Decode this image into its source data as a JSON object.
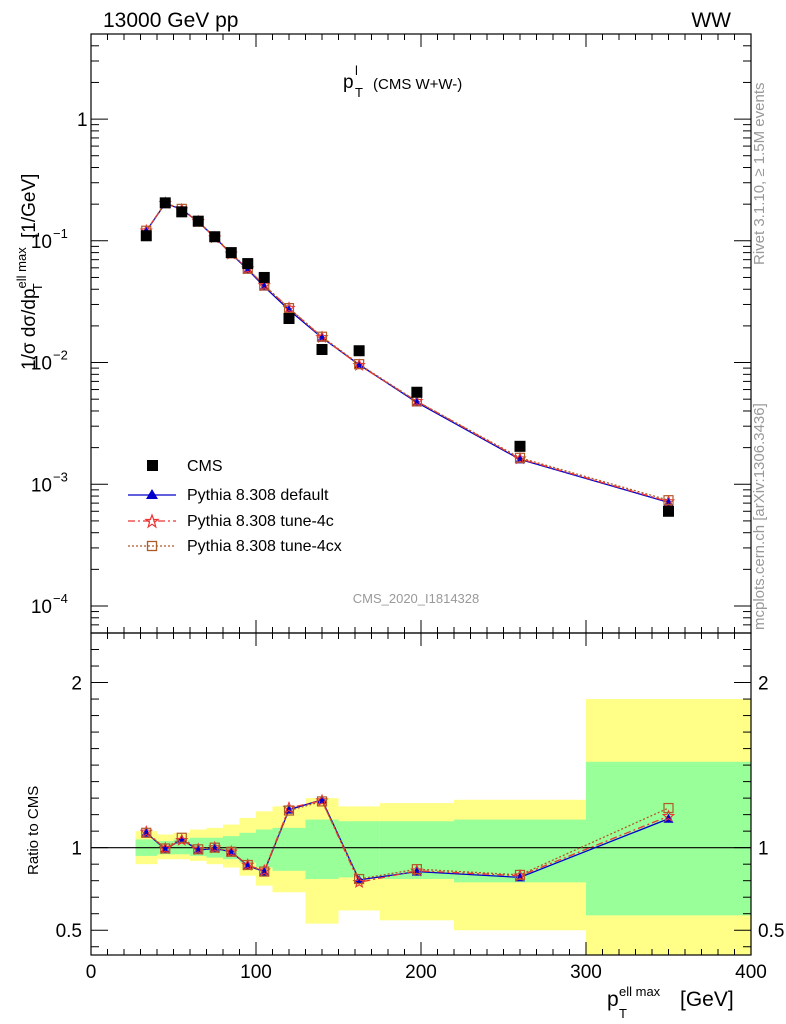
{
  "header": {
    "left": "13000 GeV pp",
    "right": "WW"
  },
  "plot_title": {
    "main": "p",
    "sup": "l",
    "sub": "T",
    "suffix": "(CMS W+W-)"
  },
  "side_text": {
    "rivet": "Rivet 3.1.10, ≥ 1.5M events",
    "mcplots": "mcplots.cern.ch [arXiv:1306.3436]"
  },
  "analysis_tag": "CMS_2020_I1814328",
  "colors": {
    "data": "#000000",
    "default": "#0000cc",
    "tune4c": "#ee3333",
    "tune4cx": "#b05a28",
    "band_green": "#99ff99",
    "band_yellow": "#ffff88"
  },
  "chart_data": [
    {
      "type": "scatter",
      "name": "main",
      "ylabel": "1/σ dσ/dp_T^{ell max} [1/GeV]",
      "yscale": "log",
      "ylim": [
        6e-05,
        5
      ],
      "xlim": [
        0,
        400
      ],
      "yticks": [
        {
          "v": 0.0001,
          "m": "10",
          "e": "−4"
        },
        {
          "v": 0.001,
          "m": "10",
          "e": "−3"
        },
        {
          "v": 0.01,
          "m": "10",
          "e": "−2"
        },
        {
          "v": 0.1,
          "m": "10",
          "e": "−1"
        },
        {
          "v": 1,
          "m": "1",
          "e": ""
        }
      ],
      "x": [
        33.5,
        45,
        55,
        65,
        75,
        85,
        95,
        105,
        120,
        140,
        162.5,
        197.5,
        260,
        350
      ],
      "series": [
        {
          "name": "CMS",
          "values": [
            0.11,
            0.205,
            0.173,
            0.145,
            0.108,
            0.08,
            0.065,
            0.05,
            0.023,
            0.0128,
            0.0125,
            0.0057,
            0.00205,
            0.0006
          ]
        },
        {
          "name": "Pythia 8.308 default",
          "values": [
            0.12,
            0.203,
            0.181,
            0.143,
            0.107,
            0.078,
            0.058,
            0.042,
            0.027,
            0.016,
            0.0096,
            0.0047,
            0.0016,
            0.00071
          ]
        },
        {
          "name": "Pythia 8.308 tune-4c",
          "values": [
            0.121,
            0.204,
            0.18,
            0.144,
            0.106,
            0.078,
            0.059,
            0.043,
            0.028,
            0.0161,
            0.0095,
            0.0048,
            0.00162,
            0.00072
          ]
        },
        {
          "name": "Pythia 8.308 tune-4cx",
          "values": [
            0.121,
            0.205,
            0.183,
            0.144,
            0.108,
            0.079,
            0.059,
            0.043,
            0.028,
            0.0163,
            0.0097,
            0.0048,
            0.00165,
            0.00074
          ]
        }
      ]
    },
    {
      "type": "line",
      "name": "ratio",
      "ylabel": "Ratio to CMS",
      "xlabel": "p_T^{ell max} [GeV]",
      "ylim": [
        0.35,
        2.3
      ],
      "xlim": [
        0,
        400
      ],
      "yticks": [
        0.5,
        1,
        2
      ],
      "xticks": [
        0,
        100,
        200,
        300,
        400
      ],
      "x": [
        33.5,
        45,
        55,
        65,
        75,
        85,
        95,
        105,
        120,
        140,
        162.5,
        197.5,
        260,
        350
      ],
      "series": [
        {
          "name": "Pythia 8.308 default",
          "values": [
            1.09,
            0.99,
            1.05,
            0.985,
            0.995,
            0.975,
            0.89,
            0.855,
            1.23,
            1.29,
            0.805,
            0.855,
            0.82,
            1.175
          ]
        },
        {
          "name": "Pythia 8.308 tune-4c",
          "values": [
            1.095,
            0.995,
            1.045,
            0.99,
            1.0,
            0.975,
            0.895,
            0.86,
            1.24,
            1.285,
            0.79,
            0.86,
            0.83,
            1.19
          ]
        },
        {
          "name": "Pythia 8.308 tune-4cx",
          "values": [
            1.09,
            0.995,
            1.06,
            0.99,
            1.0,
            0.975,
            0.895,
            0.855,
            1.225,
            1.28,
            0.81,
            0.87,
            0.835,
            1.24
          ]
        }
      ],
      "bands": [
        {
          "x0": 27,
          "x1": 40,
          "g": [
            0.95,
            1.05
          ],
          "y": [
            0.9,
            1.1
          ]
        },
        {
          "x0": 40,
          "x1": 50,
          "g": [
            0.96,
            1.04
          ],
          "y": [
            0.93,
            1.08
          ]
        },
        {
          "x0": 50,
          "x1": 60,
          "g": [
            0.96,
            1.05
          ],
          "y": [
            0.93,
            1.09
          ]
        },
        {
          "x0": 60,
          "x1": 70,
          "g": [
            0.95,
            1.06
          ],
          "y": [
            0.92,
            1.11
          ]
        },
        {
          "x0": 70,
          "x1": 80,
          "g": [
            0.94,
            1.06
          ],
          "y": [
            0.9,
            1.12
          ]
        },
        {
          "x0": 80,
          "x1": 90,
          "g": [
            0.93,
            1.07
          ],
          "y": [
            0.88,
            1.14
          ]
        },
        {
          "x0": 90,
          "x1": 100,
          "g": [
            0.91,
            1.09
          ],
          "y": [
            0.83,
            1.18
          ]
        },
        {
          "x0": 100,
          "x1": 110,
          "g": [
            0.88,
            1.11
          ],
          "y": [
            0.77,
            1.22
          ]
        },
        {
          "x0": 110,
          "x1": 130,
          "g": [
            0.86,
            1.12
          ],
          "y": [
            0.73,
            1.25
          ]
        },
        {
          "x0": 130,
          "x1": 150,
          "g": [
            0.81,
            1.17
          ],
          "y": [
            0.54,
            1.3
          ]
        },
        {
          "x0": 150,
          "x1": 175,
          "g": [
            0.82,
            1.16
          ],
          "y": [
            0.62,
            1.25
          ]
        },
        {
          "x0": 175,
          "x1": 220,
          "g": [
            0.81,
            1.16
          ],
          "y": [
            0.56,
            1.27
          ]
        },
        {
          "x0": 220,
          "x1": 300,
          "g": [
            0.79,
            1.17
          ],
          "y": [
            0.5,
            1.29
          ]
        },
        {
          "x0": 300,
          "x1": 400,
          "g": [
            0.59,
            1.52
          ],
          "y": [
            0.3,
            1.9
          ]
        }
      ]
    }
  ]
}
